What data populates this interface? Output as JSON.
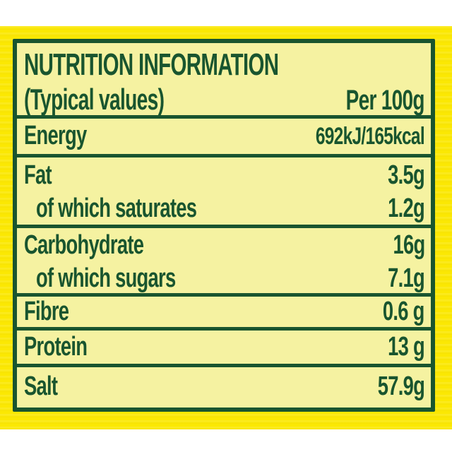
{
  "colors": {
    "brand_yellow": "#fbe803",
    "panel_yellow": "#f5f2a1",
    "green": "#19552f",
    "page_white": "#ffffff"
  },
  "table": {
    "title": "NUTRITION INFORMATION",
    "subtitle": "(Typical values)",
    "column_header": "Per 100g",
    "rows": [
      {
        "name": "Energy",
        "value": "692kJ/165kcal"
      },
      {
        "name": "Fat",
        "value": "3.5g",
        "sub_name": "of which saturates",
        "sub_value": "1.2g"
      },
      {
        "name": "Carbohydrate",
        "value": "16g",
        "sub_name": "of which sugars",
        "sub_value": "7.1g"
      },
      {
        "name": "Fibre",
        "value": "0.6 g"
      },
      {
        "name": "Protein",
        "value": "13 g"
      },
      {
        "name": "Salt",
        "value": "57.9g"
      }
    ]
  }
}
